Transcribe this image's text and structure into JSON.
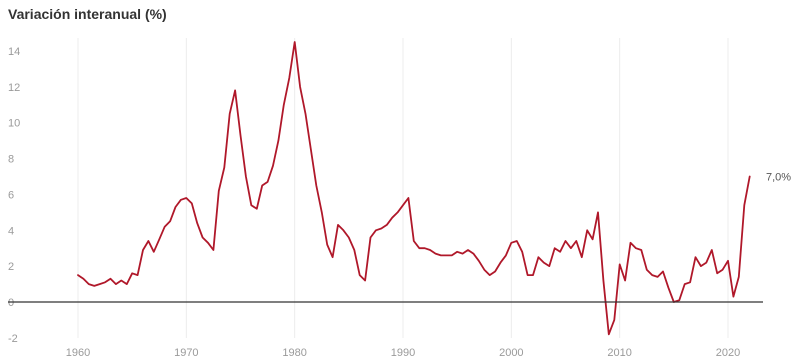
{
  "chart_data": {
    "type": "line",
    "title": "Variación interanual (%)",
    "xlabel": "",
    "ylabel": "",
    "xlim": [
      1960,
      2022
    ],
    "ylim": [
      -2,
      14
    ],
    "y_ticks": [
      14,
      12,
      10,
      8,
      6,
      4,
      2,
      0,
      -2
    ],
    "y_tick_labels": [
      "14",
      "12",
      "10",
      "8",
      "6",
      "4",
      "2",
      "0",
      "-2"
    ],
    "x_ticks": [
      1960,
      1970,
      1980,
      1990,
      2000,
      2010,
      2020
    ],
    "x_tick_labels": [
      "1960",
      "1970",
      "1980",
      "1990",
      "2000",
      "2010",
      "2020"
    ],
    "grid": "vertical",
    "zero_line": true,
    "end_label": "7,0%",
    "colors": {
      "line": "#b0182a",
      "grid": "#ececec",
      "zero_line": "#333333"
    },
    "series": [
      {
        "x": [
          1960.0,
          1960.5,
          1961.0,
          1961.5,
          1962.0,
          1962.5,
          1963.0,
          1963.5,
          1964.0,
          1964.5,
          1965.0,
          1965.5,
          1966.0,
          1966.5,
          1967.0,
          1967.5,
          1968.0,
          1968.5,
          1969.0,
          1969.5,
          1970.0,
          1970.5,
          1971.0,
          1971.5,
          1972.0,
          1972.5,
          1973.0,
          1973.5,
          1974.0,
          1974.5,
          1975.0,
          1975.5,
          1976.0,
          1976.5,
          1977.0,
          1977.5,
          1978.0,
          1978.5,
          1979.0,
          1979.5,
          1980.0,
          1980.5,
          1981.0,
          1981.5,
          1982.0,
          1982.5,
          1983.0,
          1983.5,
          1984.0,
          1984.5,
          1985.0,
          1985.5,
          1986.0,
          1986.5,
          1987.0,
          1987.5,
          1988.0,
          1988.5,
          1989.0,
          1989.5,
          1990.0,
          1990.5,
          1991.0,
          1991.5,
          1992.0,
          1992.5,
          1993.0,
          1993.5,
          1994.0,
          1994.5,
          1995.0,
          1995.5,
          1996.0,
          1996.5,
          1997.0,
          1997.5,
          1998.0,
          1998.5,
          1999.0,
          1999.5,
          2000.0,
          2000.5,
          2001.0,
          2001.5,
          2002.0,
          2002.5,
          2003.0,
          2003.5,
          2004.0,
          2004.5,
          2005.0,
          2005.5,
          2006.0,
          2006.5,
          2007.0,
          2007.5,
          2008.0,
          2008.5,
          2009.0,
          2009.5,
          2010.0,
          2010.5,
          2011.0,
          2011.5,
          2012.0,
          2012.5,
          2013.0,
          2013.5,
          2014.0,
          2014.5,
          2015.0,
          2015.5,
          2016.0,
          2016.5,
          2017.0,
          2017.5,
          2018.0,
          2018.5,
          2019.0,
          2019.5,
          2020.0,
          2020.5,
          2021.0,
          2021.5,
          2022.0
        ],
        "values": [
          1.5,
          1.3,
          1.0,
          0.9,
          1.0,
          1.1,
          1.3,
          1.0,
          1.2,
          1.0,
          1.6,
          1.5,
          2.9,
          3.4,
          2.8,
          3.5,
          4.2,
          4.5,
          5.3,
          5.7,
          5.8,
          5.5,
          4.4,
          3.6,
          3.3,
          2.9,
          6.2,
          7.5,
          10.5,
          11.8,
          9.3,
          7.0,
          5.4,
          5.2,
          6.5,
          6.7,
          7.6,
          9.0,
          11.0,
          12.5,
          14.5,
          12.0,
          10.5,
          8.5,
          6.5,
          5.0,
          3.2,
          2.5,
          4.3,
          4.0,
          3.6,
          2.9,
          1.5,
          1.2,
          3.6,
          4.0,
          4.1,
          4.3,
          4.7,
          5.0,
          5.4,
          5.8,
          3.4,
          3.0,
          3.0,
          2.9,
          2.7,
          2.6,
          2.6,
          2.6,
          2.8,
          2.7,
          2.9,
          2.7,
          2.3,
          1.8,
          1.5,
          1.7,
          2.2,
          2.6,
          3.3,
          3.4,
          2.8,
          1.5,
          1.5,
          2.5,
          2.2,
          2.0,
          3.0,
          2.8,
          3.4,
          3.0,
          3.4,
          2.5,
          4.0,
          3.5,
          5.0,
          1.2,
          -1.8,
          -1.0,
          2.1,
          1.2,
          3.3,
          3.0,
          2.9,
          1.8,
          1.5,
          1.4,
          1.7,
          0.8,
          0.0,
          0.1,
          1.0,
          1.1,
          2.5,
          2.0,
          2.2,
          2.9,
          1.6,
          1.8,
          2.3,
          0.3,
          1.4,
          5.4,
          7.0
        ]
      }
    ]
  }
}
